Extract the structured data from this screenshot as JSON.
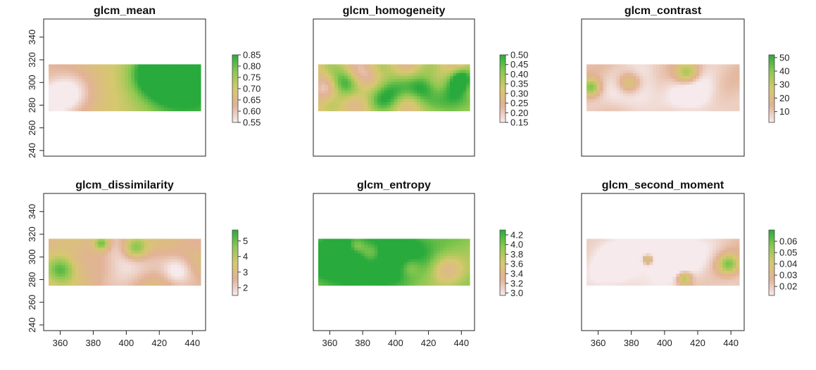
{
  "chart_data": [
    {
      "type": "heatmap",
      "title": "glcm_mean",
      "xticks": [],
      "yticks": [
        240,
        260,
        280,
        300,
        320,
        340
      ],
      "xlim": [
        350,
        448
      ],
      "ylim": [
        235,
        356
      ],
      "extent": {
        "x": [
          353,
          445
        ],
        "y": [
          275,
          316
        ]
      },
      "legend": {
        "ticks": [
          "0.85",
          "0.80",
          "0.75",
          "0.70",
          "0.65",
          "0.60",
          "0.55"
        ],
        "min": 0.55,
        "max": 0.85
      },
      "field": {
        "gradient": "left-to-right",
        "low_spots": [
          [
            0.15,
            0.6,
            0.14
          ],
          [
            0.05,
            0.75,
            0.1
          ]
        ],
        "high_spots": [
          [
            0.85,
            0.4,
            0.2
          ],
          [
            0.7,
            0.2,
            0.15
          ]
        ]
      }
    },
    {
      "type": "heatmap",
      "title": "glcm_homogeneity",
      "xticks": [],
      "yticks": [],
      "xlim": [
        350,
        448
      ],
      "ylim": [
        235,
        356
      ],
      "extent": {
        "x": [
          353,
          445
        ],
        "y": [
          275,
          316
        ]
      },
      "legend": {
        "ticks": [
          "0.50",
          "0.45",
          "0.40",
          "0.35",
          "0.30",
          "0.25",
          "0.20",
          "0.15"
        ],
        "min": 0.15,
        "max": 0.5
      },
      "field": {
        "gradient": "mottled",
        "low_spots": [
          [
            0.05,
            0.5,
            0.1
          ],
          [
            0.3,
            0.3,
            0.1
          ]
        ],
        "high_spots": [
          [
            0.15,
            0.4,
            0.1
          ],
          [
            0.45,
            0.6,
            0.12
          ],
          [
            0.7,
            0.5,
            0.1
          ],
          [
            0.9,
            0.8,
            0.12
          ],
          [
            0.95,
            0.3,
            0.08
          ]
        ]
      }
    },
    {
      "type": "heatmap",
      "title": "glcm_contrast",
      "xticks": [],
      "yticks": [],
      "xlim": [
        350,
        448
      ],
      "ylim": [
        235,
        356
      ],
      "extent": {
        "x": [
          353,
          445
        ],
        "y": [
          275,
          316
        ]
      },
      "legend": {
        "ticks": [
          "50",
          "40",
          "30",
          "20",
          "10"
        ],
        "min": 2,
        "max": 52
      },
      "field": {
        "gradient": "flat-low",
        "low_spots": [
          [
            0.3,
            0.5,
            0.15
          ],
          [
            0.7,
            0.6,
            0.15
          ]
        ],
        "high_spots": [
          [
            0.28,
            0.4,
            0.08
          ],
          [
            0.66,
            0.2,
            0.08
          ],
          [
            0.03,
            0.5,
            0.06
          ]
        ]
      }
    },
    {
      "type": "heatmap",
      "title": "glcm_dissimilarity",
      "xticks": [
        360,
        380,
        400,
        420,
        440
      ],
      "yticks": [
        240,
        260,
        280,
        300,
        320,
        340
      ],
      "xlim": [
        350,
        448
      ],
      "ylim": [
        235,
        356
      ],
      "extent": {
        "x": [
          353,
          445
        ],
        "y": [
          275,
          316
        ]
      },
      "legend": {
        "ticks": [
          "5",
          "4",
          "3",
          "2"
        ],
        "min": 1.5,
        "max": 5.7
      },
      "field": {
        "gradient": "flat-mid",
        "low_spots": [
          [
            0.5,
            0.5,
            0.15
          ],
          [
            0.85,
            0.7,
            0.1
          ]
        ],
        "high_spots": [
          [
            0.08,
            0.65,
            0.1
          ],
          [
            0.57,
            0.2,
            0.08
          ],
          [
            0.35,
            0.1,
            0.05
          ]
        ]
      }
    },
    {
      "type": "heatmap",
      "title": "glcm_entropy",
      "xticks": [
        360,
        380,
        400,
        420,
        440
      ],
      "yticks": [],
      "xlim": [
        350,
        448
      ],
      "ylim": [
        235,
        356
      ],
      "extent": {
        "x": [
          353,
          445
        ],
        "y": [
          275,
          316
        ]
      },
      "legend": {
        "ticks": [
          "4.2",
          "4.0",
          "3.8",
          "3.6",
          "3.4",
          "3.2",
          "3.0"
        ],
        "min": 2.95,
        "max": 4.3
      },
      "field": {
        "gradient": "flat-high",
        "low_spots": [
          [
            0.35,
            0.3,
            0.08
          ],
          [
            0.6,
            0.6,
            0.08
          ],
          [
            0.85,
            0.65,
            0.1
          ],
          [
            0.25,
            0.15,
            0.06
          ]
        ],
        "high_spots": [
          [
            0.15,
            0.5,
            0.2
          ],
          [
            0.5,
            0.3,
            0.2
          ]
        ]
      }
    },
    {
      "type": "heatmap",
      "title": "glcm_second_moment",
      "xticks": [
        360,
        380,
        400,
        420,
        440
      ],
      "yticks": [],
      "xlim": [
        350,
        448
      ],
      "ylim": [
        235,
        356
      ],
      "extent": {
        "x": [
          353,
          445
        ],
        "y": [
          275,
          316
        ]
      },
      "legend": {
        "ticks": [
          "0.06",
          "0.05",
          "0.04",
          "0.03",
          "0.02"
        ],
        "min": 0.012,
        "max": 0.07
      },
      "field": {
        "gradient": "flat-low",
        "low_spots": [
          [
            0.2,
            0.5,
            0.2
          ],
          [
            0.6,
            0.4,
            0.2
          ]
        ],
        "high_spots": [
          [
            0.93,
            0.55,
            0.07
          ],
          [
            0.64,
            0.85,
            0.05
          ],
          [
            0.4,
            0.45,
            0.03
          ]
        ]
      }
    }
  ]
}
